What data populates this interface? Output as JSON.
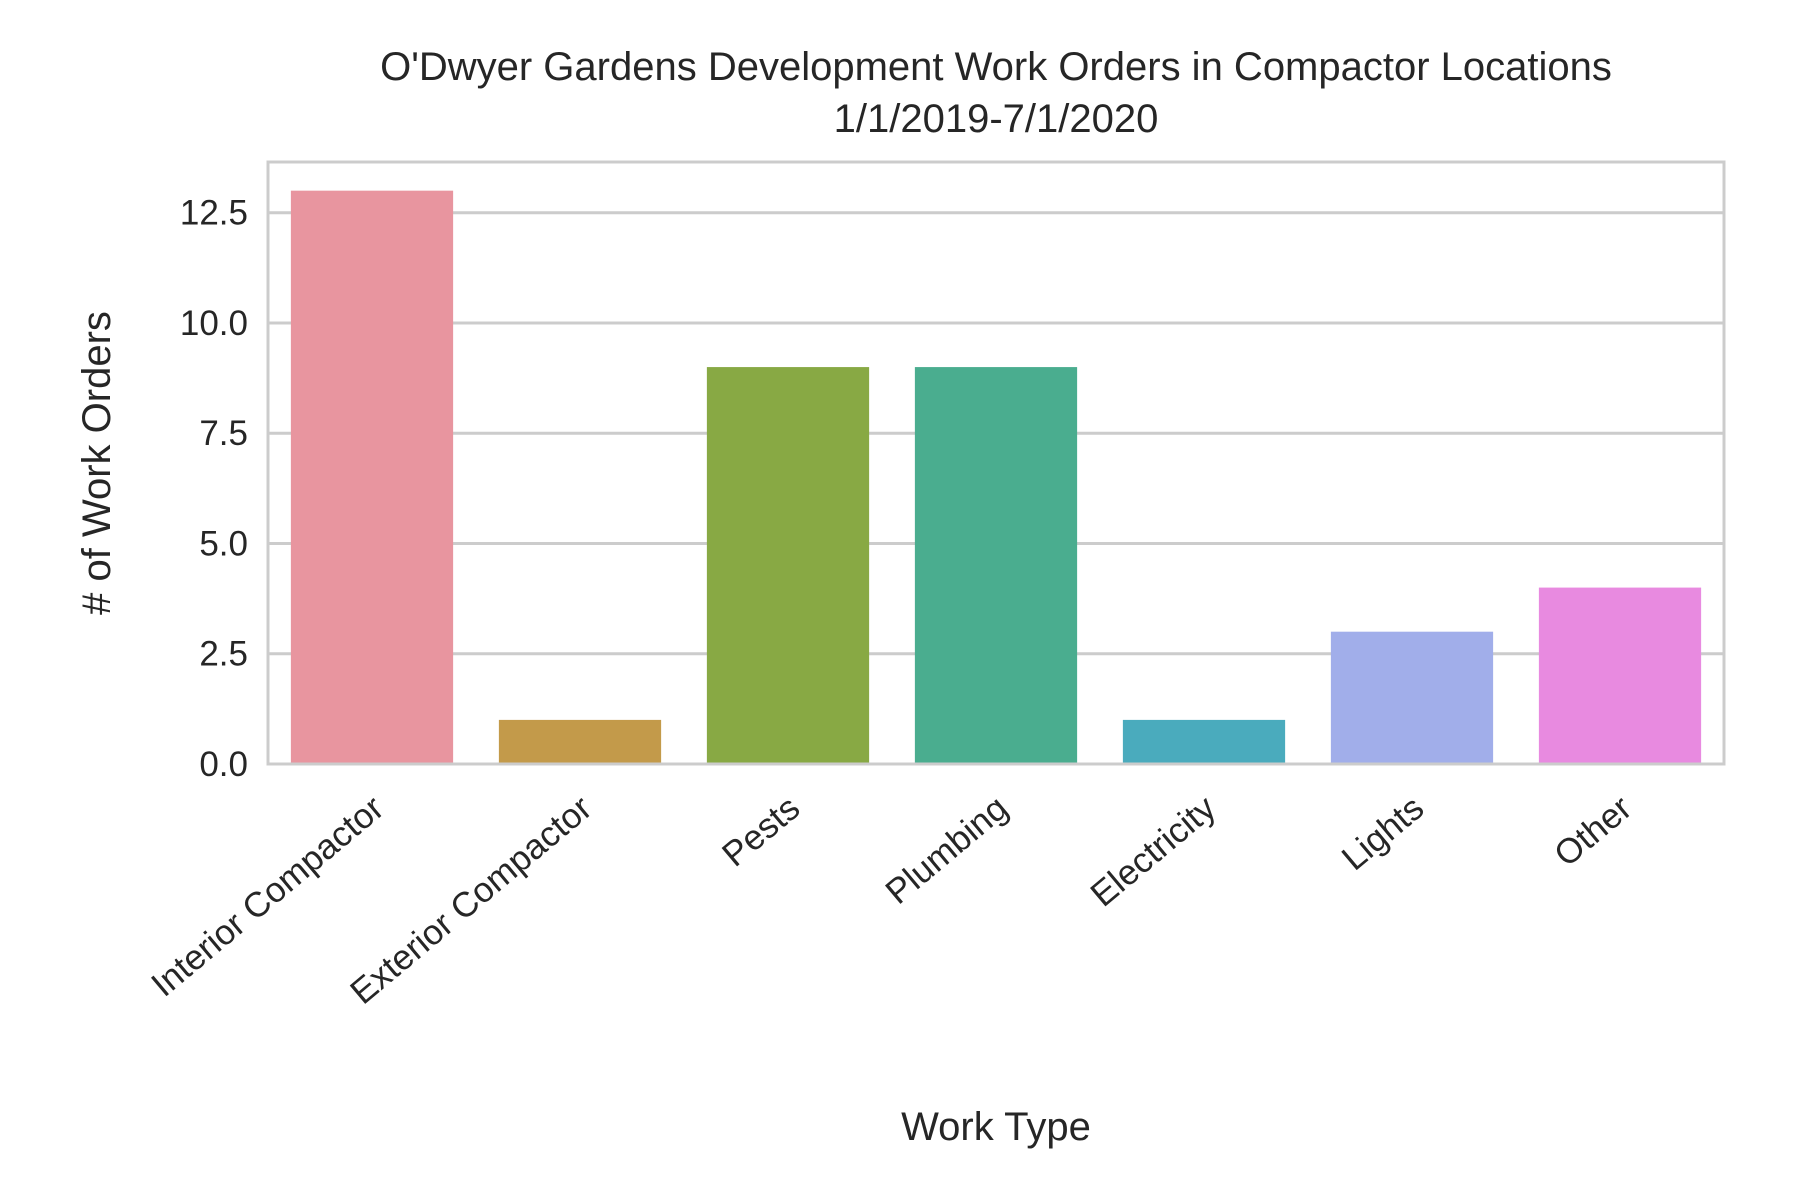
{
  "chart_data": {
    "type": "bar",
    "title_line1": "O'Dwyer Gardens Development Work Orders in Compactor Locations",
    "title_line2": "1/1/2019-7/1/2020",
    "xlabel": "Work Type",
    "ylabel": "# of Work Orders",
    "categories": [
      "Interior Compactor",
      "Exterior Compactor",
      "Pests",
      "Plumbing",
      "Electricity",
      "Lights",
      "Other"
    ],
    "values": [
      13,
      1,
      9,
      9,
      1,
      3,
      4
    ],
    "colors": [
      "#e8959f",
      "#c39a4a",
      "#88a944",
      "#4aad8f",
      "#4aabbd",
      "#a1aeea",
      "#e88ae0"
    ],
    "ylim": [
      0,
      13.65
    ],
    "yticks": [
      0.0,
      2.5,
      5.0,
      7.5,
      10.0,
      12.5
    ],
    "ytick_labels": [
      "0.0",
      "2.5",
      "5.0",
      "7.5",
      "10.0",
      "12.5"
    ],
    "grid": "horizontal",
    "legend": "none"
  }
}
